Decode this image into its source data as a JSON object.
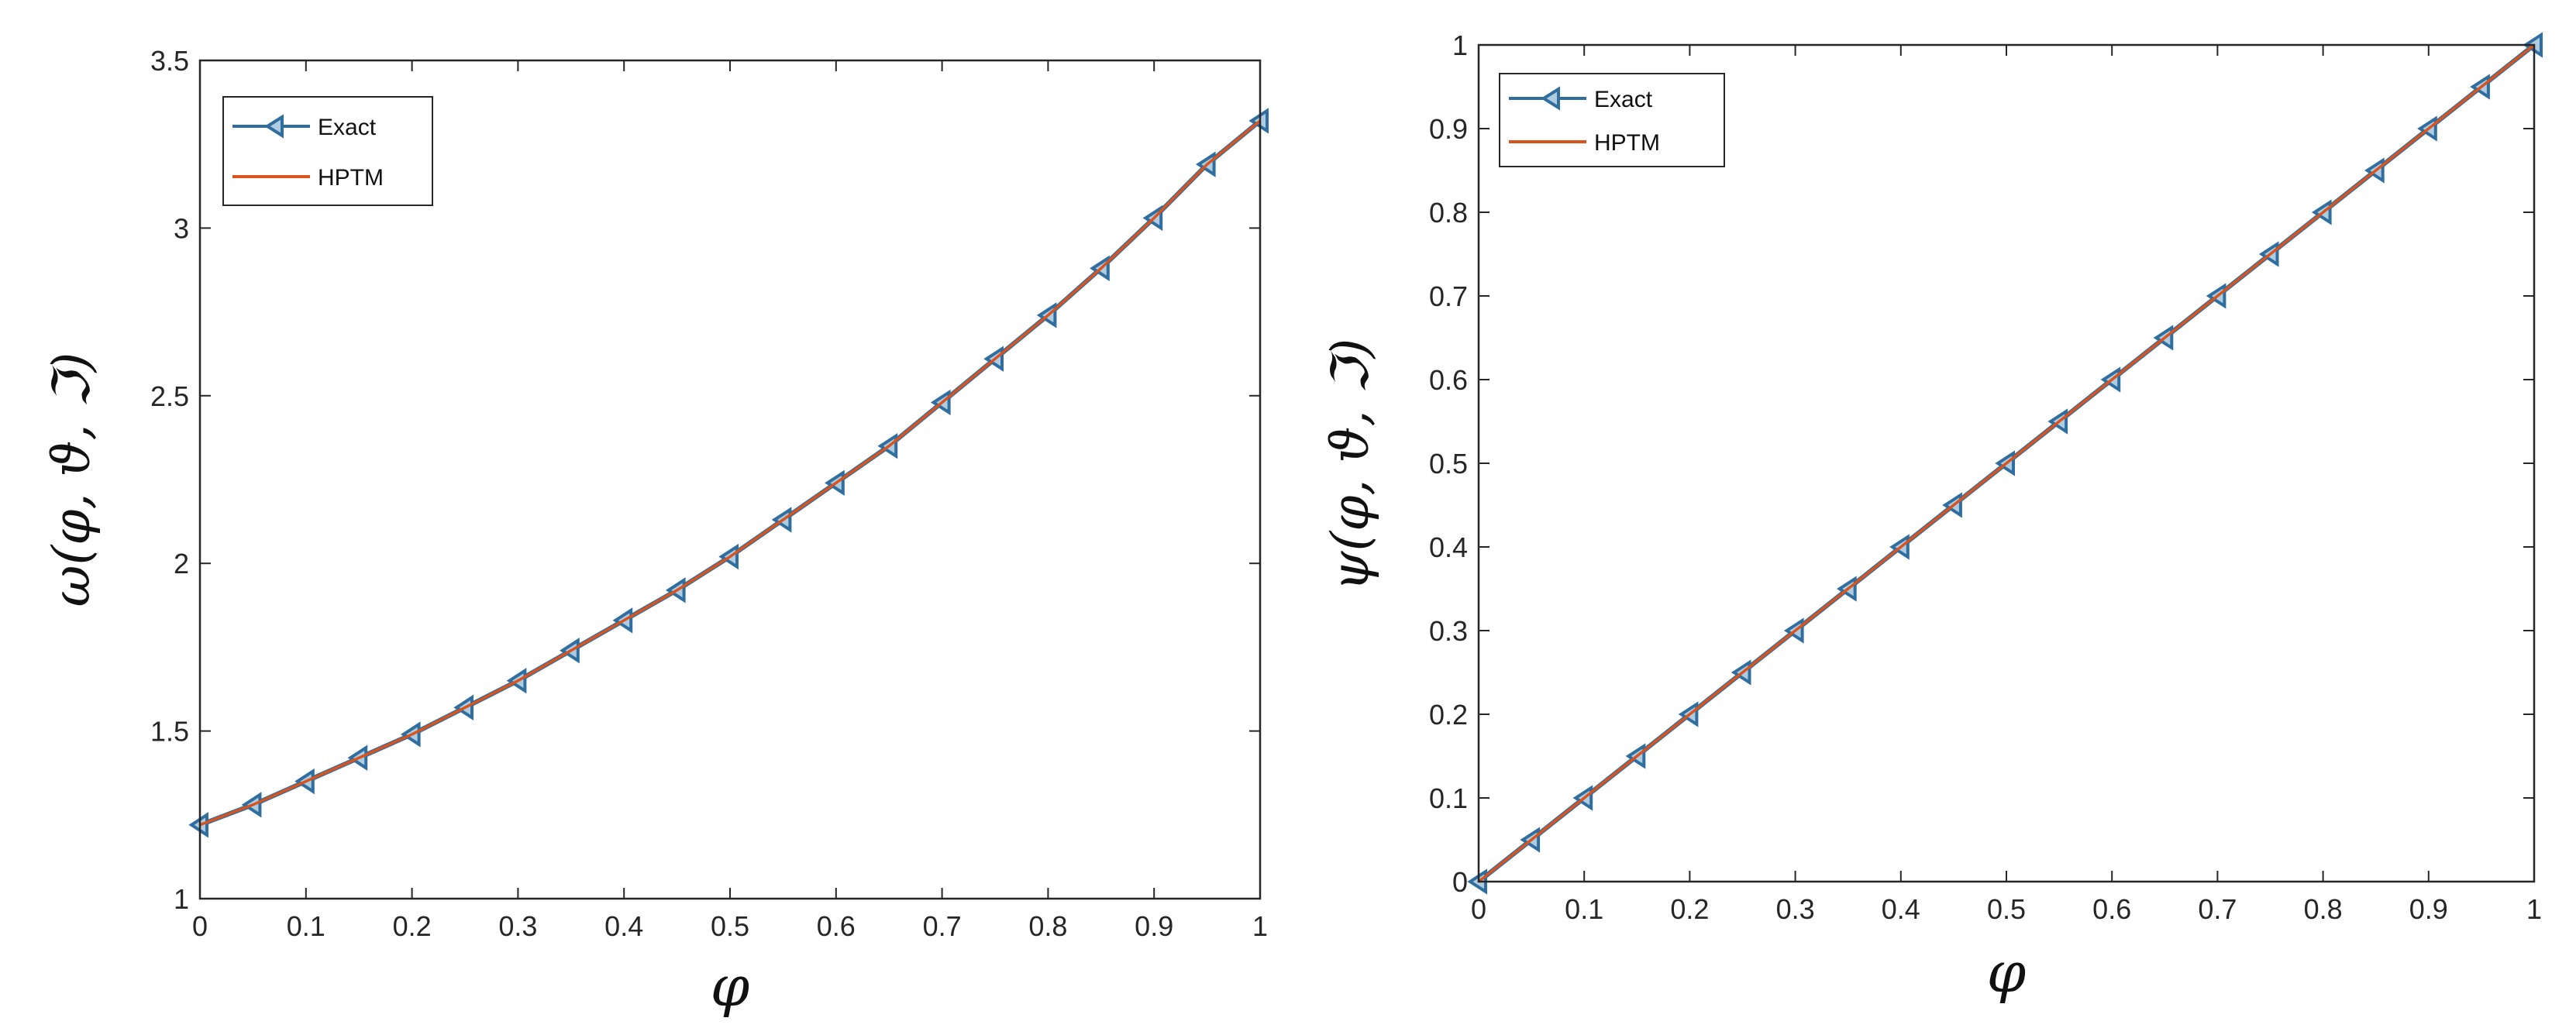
{
  "chart_data": [
    {
      "type": "line",
      "title": "",
      "xlabel": "φ",
      "ylabel": "ω(φ, ϑ, ℑ)",
      "xlim": [
        0,
        1
      ],
      "ylim": [
        1,
        3.5
      ],
      "xticks": [
        "0",
        "0.1",
        "0.2",
        "0.3",
        "0.4",
        "0.5",
        "0.6",
        "0.7",
        "0.8",
        "0.9",
        "1"
      ],
      "yticks": [
        "1",
        "1.5",
        "2",
        "2.5",
        "3",
        "3.5"
      ],
      "grid": false,
      "legend_position": "top-left",
      "x": [
        0,
        0.05,
        0.1,
        0.15,
        0.2,
        0.25,
        0.3,
        0.35,
        0.4,
        0.45,
        0.5,
        0.55,
        0.6,
        0.65,
        0.7,
        0.75,
        0.8,
        0.85,
        0.9,
        0.95,
        1
      ],
      "series": [
        {
          "name": "Exact",
          "color": "#2f6e9e",
          "marker": "triangle-left",
          "values": [
            1.22,
            1.28,
            1.35,
            1.42,
            1.49,
            1.57,
            1.65,
            1.74,
            1.83,
            1.92,
            2.02,
            2.13,
            2.24,
            2.35,
            2.48,
            2.61,
            2.74,
            2.88,
            3.03,
            3.19,
            3.32
          ]
        },
        {
          "name": "HPTM",
          "color": "#d9531e",
          "marker": "none",
          "values": [
            1.22,
            1.28,
            1.35,
            1.42,
            1.49,
            1.57,
            1.65,
            1.74,
            1.83,
            1.92,
            2.02,
            2.13,
            2.24,
            2.35,
            2.48,
            2.61,
            2.74,
            2.88,
            3.03,
            3.19,
            3.32
          ]
        }
      ]
    },
    {
      "type": "line",
      "title": "",
      "xlabel": "φ",
      "ylabel": "ψ(φ, ϑ, ℑ)",
      "xlim": [
        0,
        1
      ],
      "ylim": [
        0,
        1
      ],
      "xticks": [
        "0",
        "0.1",
        "0.2",
        "0.3",
        "0.4",
        "0.5",
        "0.6",
        "0.7",
        "0.8",
        "0.9",
        "1"
      ],
      "yticks": [
        "0",
        "0.1",
        "0.2",
        "0.3",
        "0.4",
        "0.5",
        "0.6",
        "0.7",
        "0.8",
        "0.9",
        "1"
      ],
      "grid": false,
      "legend_position": "top-left",
      "x": [
        0,
        0.05,
        0.1,
        0.15,
        0.2,
        0.25,
        0.3,
        0.35,
        0.4,
        0.45,
        0.5,
        0.55,
        0.6,
        0.65,
        0.7,
        0.75,
        0.8,
        0.85,
        0.9,
        0.95,
        1
      ],
      "series": [
        {
          "name": "Exact",
          "color": "#2f6e9e",
          "marker": "triangle-left",
          "values": [
            0,
            0.05,
            0.1,
            0.15,
            0.2,
            0.25,
            0.3,
            0.35,
            0.4,
            0.45,
            0.5,
            0.55,
            0.6,
            0.65,
            0.7,
            0.75,
            0.8,
            0.85,
            0.9,
            0.95,
            1
          ]
        },
        {
          "name": "HPTM",
          "color": "#d9531e",
          "marker": "none",
          "values": [
            0,
            0.05,
            0.1,
            0.15,
            0.2,
            0.25,
            0.3,
            0.35,
            0.4,
            0.45,
            0.5,
            0.55,
            0.6,
            0.65,
            0.7,
            0.75,
            0.8,
            0.85,
            0.9,
            0.95,
            1
          ]
        }
      ]
    }
  ]
}
